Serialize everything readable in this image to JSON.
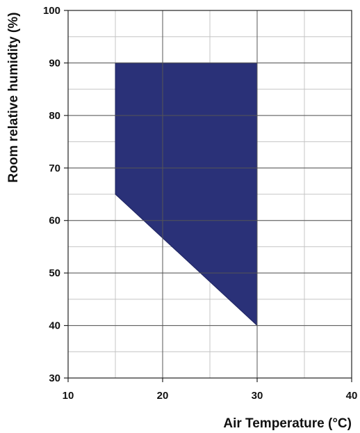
{
  "chart_data": {
    "type": "area",
    "title": "",
    "xlabel": "Air Temperature (°C)",
    "ylabel": "Room relative humidity  (%)",
    "xlim": [
      10,
      40
    ],
    "ylim": [
      30,
      100
    ],
    "x_ticks": [
      10,
      20,
      30,
      40
    ],
    "y_ticks": [
      30,
      40,
      50,
      60,
      70,
      80,
      90,
      100
    ],
    "x_minor_step": 5,
    "y_minor_step": 5,
    "grid": true,
    "series": [
      {
        "polygon": [
          {
            "x": 15,
            "y": 90
          },
          {
            "x": 30,
            "y": 90
          },
          {
            "x": 30,
            "y": 40
          },
          {
            "x": 15,
            "y": 65
          }
        ],
        "color": "#2a3178"
      }
    ]
  }
}
